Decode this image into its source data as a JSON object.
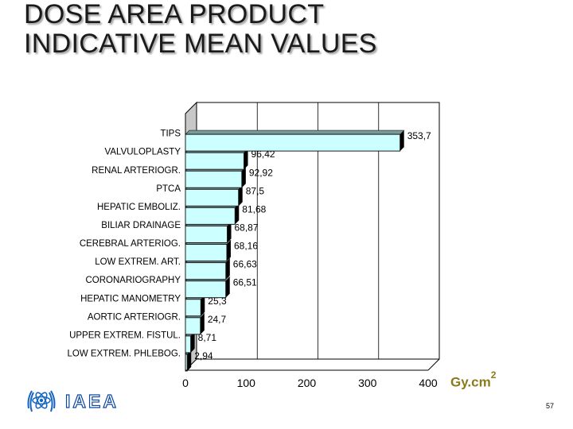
{
  "title": {
    "line1": "DOSE AREA PRODUCT",
    "line2": "INDICATIVE MEAN VALUES"
  },
  "unit": {
    "base": "Gy.cm",
    "exp": "2"
  },
  "logo_text": "IAEA",
  "page_number": "57",
  "chart_data": {
    "type": "bar",
    "orientation": "horizontal",
    "title": "",
    "xlabel": "Gy.cm2",
    "ylabel": "",
    "xlim": [
      0,
      400
    ],
    "x_ticks": [
      "0",
      "100",
      "200",
      "300",
      "400"
    ],
    "grid": true,
    "categories": [
      "LOW EXTREM. PHLEBOG.",
      "UPPER EXTREM. FISTUL.",
      "AORTIC ARTERIOGR.",
      "HEPATIC MANOMETRY",
      "CORONARIOGRAPHY",
      "LOW EXTREM. ART.",
      "CEREBRAL ARTERIOG.",
      "BILIAR DRAINAGE",
      "HEPATIC EMBOLIZ.",
      "PTCA",
      "RENAL ARTERIOGR.",
      "VALVULOPLASTY",
      "TIPS",
      ""
    ],
    "values": [
      2.94,
      8.71,
      24.7,
      25.3,
      66.51,
      66.63,
      68.16,
      68.87,
      81.68,
      87.5,
      92.92,
      96.42,
      353.7,
      null
    ],
    "data_labels": [
      "2,94",
      "8,71",
      "24,7",
      "25,3",
      "66,51",
      "66,63",
      "68,16",
      "68,87",
      "81,68",
      "87,5",
      "92,92",
      "96,42",
      "353,7",
      ""
    ],
    "colors": {
      "bar_fill": "#ccffff",
      "bar_edge": "#1a1a1a",
      "bar_shadow": "#000000",
      "plot_bg": "#ffffff",
      "wall": "#c8c8c8",
      "grid": "#000000"
    }
  }
}
